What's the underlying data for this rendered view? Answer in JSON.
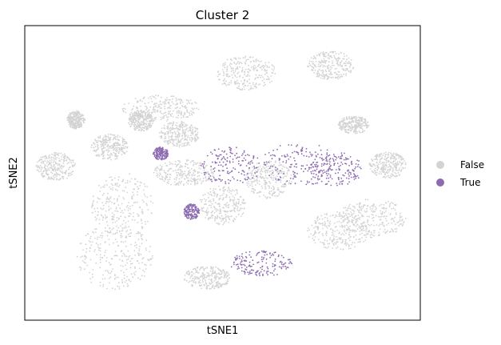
{
  "chart_data": {
    "type": "scatter",
    "title": "Cluster 2",
    "xlabel": "tSNE1",
    "ylabel": "tSNE2",
    "xlim": [
      -60,
      65
    ],
    "ylim": [
      -55,
      55
    ],
    "xticks": [],
    "yticks": [],
    "grid": false,
    "legend_position": "right",
    "series": [
      {
        "name": "False",
        "color": "#d3d3d3",
        "regions": [
          {
            "x": [
              -30,
              -5
            ],
            "y": [
              20,
              30
            ]
          },
          {
            "x": [
              0,
              20
            ],
            "y": [
              32,
              45
            ]
          },
          {
            "x": [
              30,
              45
            ],
            "y": [
              36,
              47
            ]
          },
          {
            "x": [
              -48,
              -42
            ],
            "y": [
              17,
              24
            ]
          },
          {
            "x": [
              -28,
              -20
            ],
            "y": [
              16,
              24
            ]
          },
          {
            "x": [
              -18,
              -5
            ],
            "y": [
              10,
              20
            ]
          },
          {
            "x": [
              -40,
              -28
            ],
            "y": [
              5,
              15
            ]
          },
          {
            "x": [
              -58,
              -45
            ],
            "y": [
              -3,
              8
            ]
          },
          {
            "x": [
              -40,
              -20
            ],
            "y": [
              -25,
              0
            ]
          },
          {
            "x": [
              -45,
              -20
            ],
            "y": [
              -45,
              -20
            ]
          },
          {
            "x": [
              -20,
              0
            ],
            "y": [
              -5,
              5
            ]
          },
          {
            "x": [
              -5,
              10
            ],
            "y": [
              -20,
              -5
            ]
          },
          {
            "x": [
              -10,
              5
            ],
            "y": [
              -45,
              -36
            ]
          },
          {
            "x": [
              10,
              25
            ],
            "y": [
              -10,
              5
            ]
          },
          {
            "x": [
              30,
              50
            ],
            "y": [
              -30,
              -15
            ]
          },
          {
            "x": [
              40,
              62
            ],
            "y": [
              -25,
              -10
            ]
          },
          {
            "x": [
              40,
              50
            ],
            "y": [
              15,
              22
            ]
          },
          {
            "x": [
              50,
              62
            ],
            "y": [
              -2,
              8
            ]
          }
        ]
      },
      {
        "name": "True",
        "color": "#8c6bb1",
        "regions": [
          {
            "x": [
              -5,
              15
            ],
            "y": [
              -5,
              10
            ]
          },
          {
            "x": [
              15,
              40
            ],
            "y": [
              -5,
              12
            ]
          },
          {
            "x": [
              30,
              48
            ],
            "y": [
              -5,
              8
            ]
          },
          {
            "x": [
              5,
              25
            ],
            "y": [
              -40,
              -30
            ]
          },
          {
            "x": [
              -20,
              -15
            ],
            "y": [
              5,
              10
            ]
          },
          {
            "x": [
              -10,
              -5
            ],
            "y": [
              -18,
              -12
            ]
          }
        ]
      }
    ]
  }
}
